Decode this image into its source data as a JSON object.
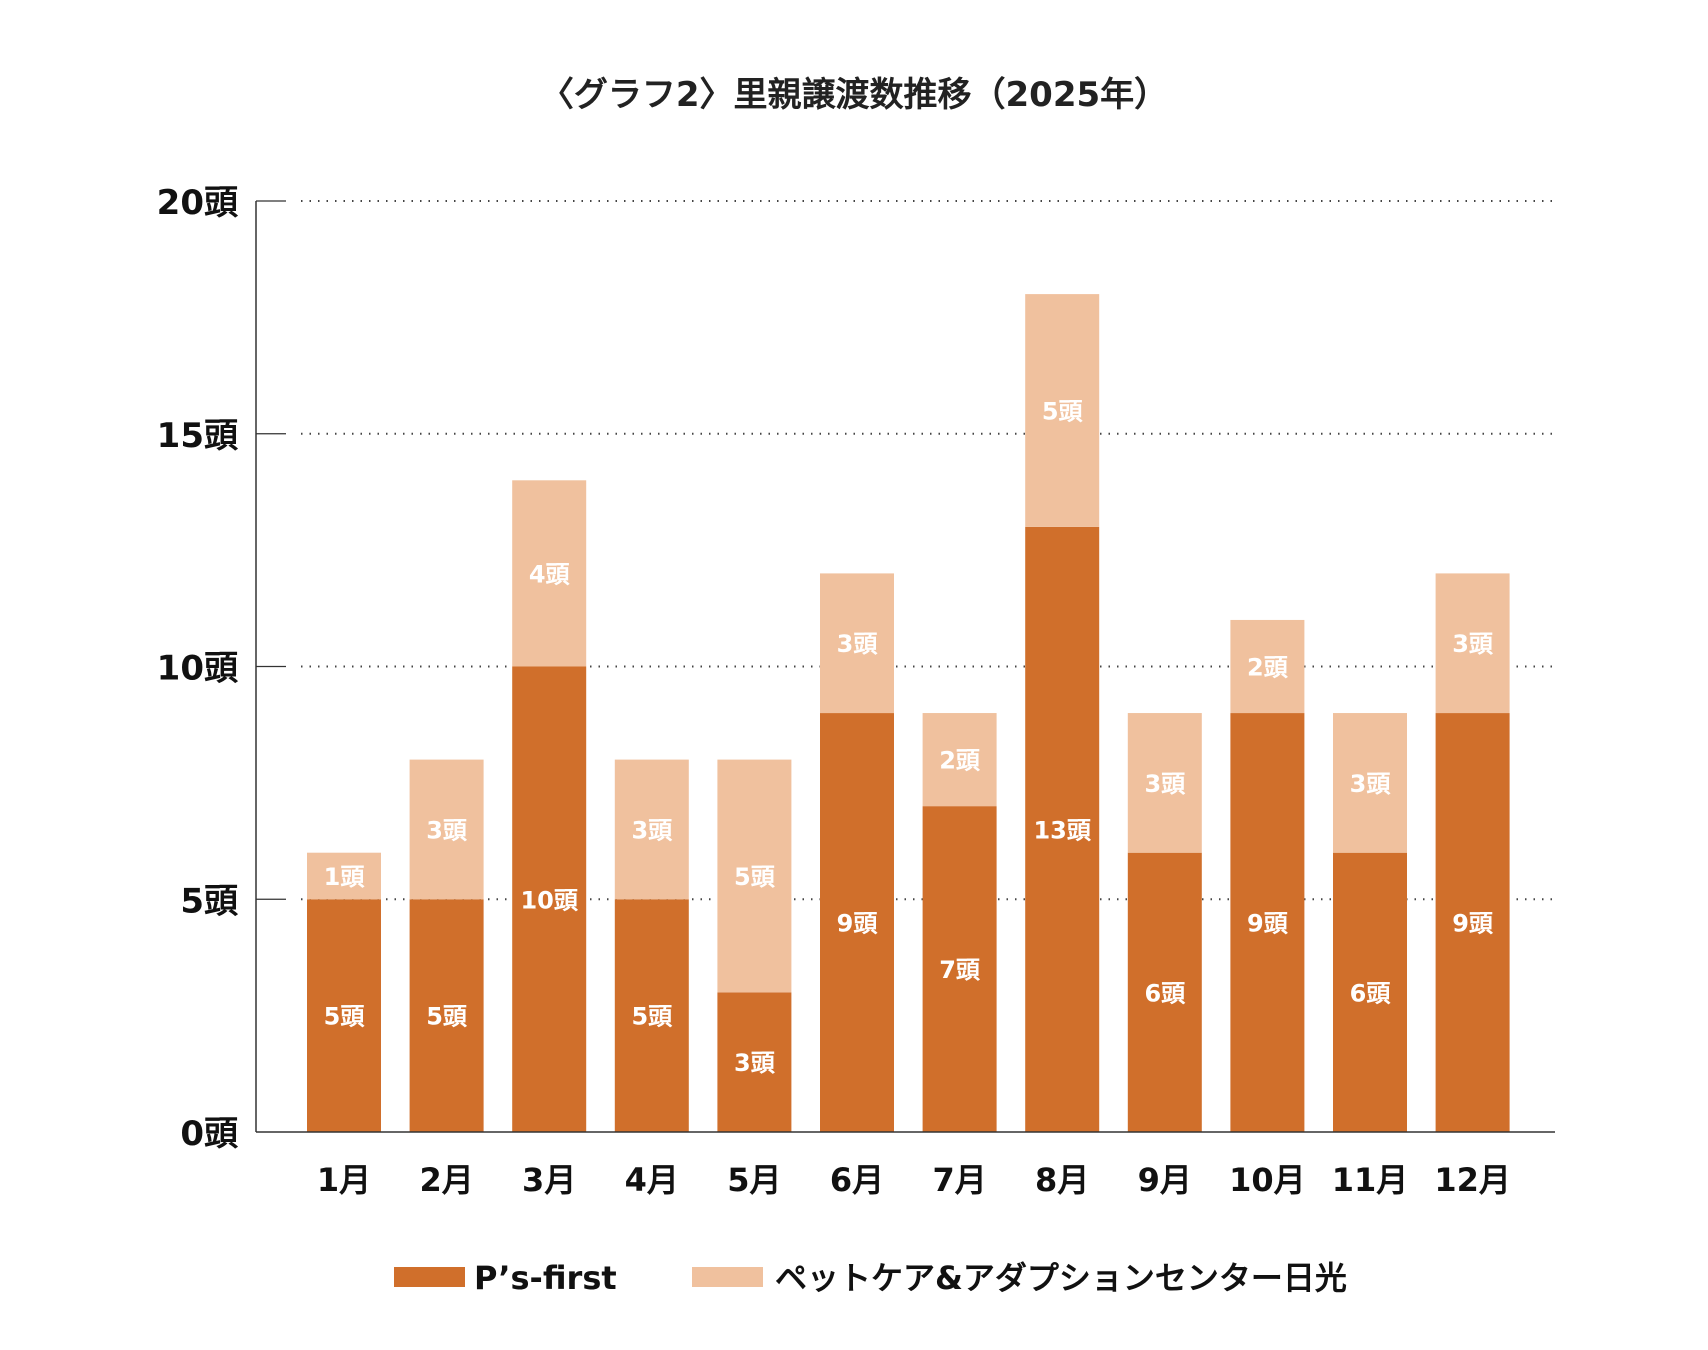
{
  "chart_data": {
    "type": "bar",
    "stacked": true,
    "title": "〈グラフ2〉里親譲渡数推移（2025年）",
    "categories": [
      "1月",
      "2月",
      "3月",
      "4月",
      "5月",
      "6月",
      "7月",
      "8月",
      "9月",
      "10月",
      "11月",
      "12月"
    ],
    "series": [
      {
        "name": "P’s-first",
        "color": "#D06F2B",
        "values": [
          5,
          5,
          10,
          5,
          3,
          9,
          7,
          13,
          6,
          9,
          6,
          9
        ]
      },
      {
        "name": "ペットケア&アダプションセンター日光",
        "color": "#F0C19E",
        "values": [
          1,
          3,
          4,
          3,
          5,
          3,
          2,
          5,
          3,
          2,
          3,
          3
        ]
      }
    ],
    "value_suffix": "頭",
    "yticks": [
      "0頭",
      "5頭",
      "10頭",
      "15頭",
      "20頭"
    ],
    "ylim": [
      0,
      20
    ],
    "grid": "dotted horizontal",
    "legend": "bottom"
  }
}
